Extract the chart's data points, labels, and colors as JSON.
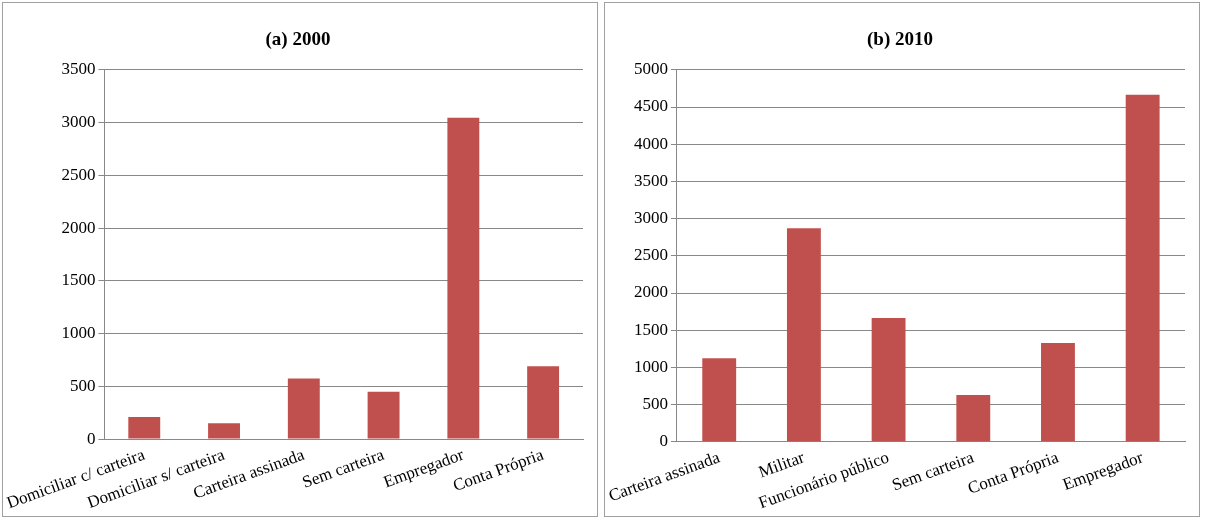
{
  "chart_data": [
    {
      "type": "bar",
      "title": "(a) 2000",
      "categories": [
        "Domiciliar c/ carteira",
        "Domiciliar s/ carteira",
        "Carteira assinada",
        "Sem carteira",
        "Empregador",
        "Conta Própria"
      ],
      "values": [
        210,
        150,
        575,
        450,
        3045,
        690
      ],
      "color": "#c0504d",
      "ylim": [
        0,
        3500
      ],
      "yticks": [
        0,
        500,
        1000,
        1500,
        2000,
        2500,
        3000,
        3500
      ],
      "grid": "y",
      "legend": false
    },
    {
      "type": "bar",
      "title": "(b) 2010",
      "categories": [
        "Carteira assinada",
        "Militar",
        "Funcionário público",
        "Sem carteira",
        "Conta Própria",
        "Empregador"
      ],
      "values": [
        1125,
        2870,
        1665,
        630,
        1330,
        4665
      ],
      "color": "#c0504d",
      "ylim": [
        0,
        5000
      ],
      "yticks": [
        0,
        500,
        1000,
        1500,
        2000,
        2500,
        3000,
        3500,
        4000,
        4500,
        5000
      ],
      "grid": "y",
      "legend": false
    }
  ]
}
